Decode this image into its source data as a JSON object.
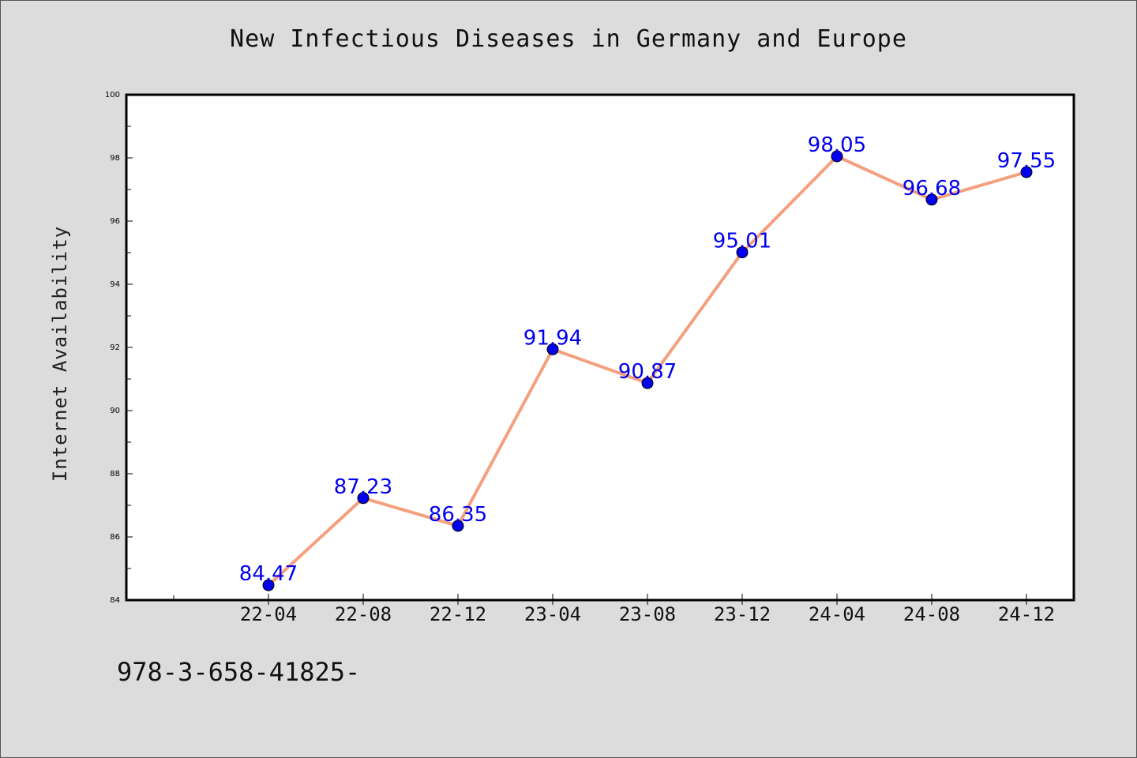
{
  "chart_data": {
    "type": "line",
    "title": "New Infectious Diseases in Germany and Europe",
    "xlabel": "",
    "ylabel": "Internet Availability",
    "categories": [
      "22-04",
      "22-08",
      "22-12",
      "23-04",
      "23-08",
      "23-12",
      "24-04",
      "24-08",
      "24-12"
    ],
    "series": [
      {
        "values": [
          84.47,
          87.23,
          86.35,
          91.94,
          90.87,
          95.01,
          98.05,
          96.68,
          97.55
        ],
        "line_color": "#f4a07f",
        "marker_color": "#0000ee",
        "label_color": "#0000ee"
      }
    ],
    "data_labels": [
      "84.47",
      "87.23",
      "86.35",
      "91.94",
      "90.87",
      "95.01",
      "98.05",
      "96.68",
      "97.55"
    ],
    "ylim": [
      84,
      100
    ],
    "y_ticks": [
      "84",
      "86",
      "88",
      "90",
      "92",
      "94",
      "96",
      "98",
      "100"
    ],
    "grid": false,
    "legend": "none"
  },
  "footer": {
    "text": "978-3-658-41825-"
  },
  "colors": {
    "background": "#dcdcdc",
    "plot_background": "#ffffff",
    "axis": "#000000"
  }
}
